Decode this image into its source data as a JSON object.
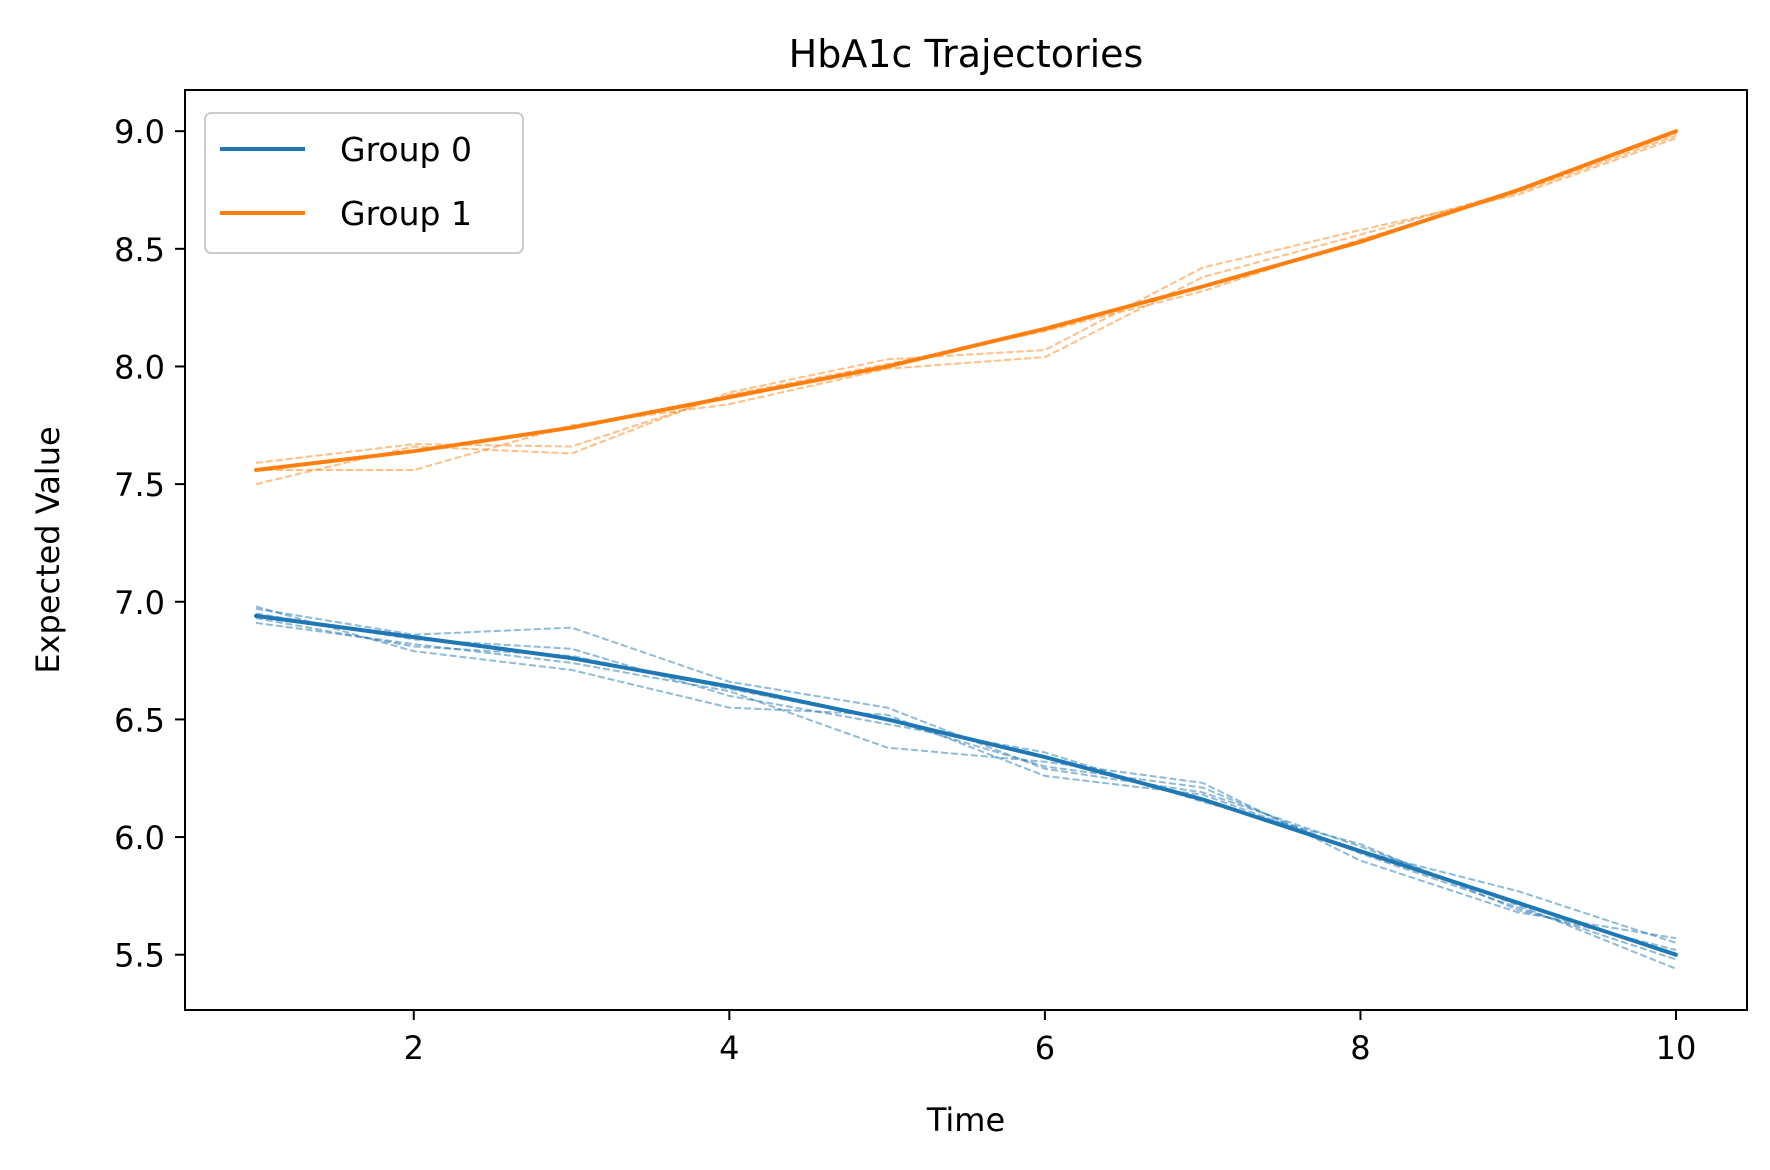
{
  "chart_data": {
    "type": "line",
    "title": "HbA1c Trajectories",
    "xlabel": "Time",
    "ylabel": "Expected Value",
    "xlim": [
      0.55,
      10.45
    ],
    "ylim": [
      5.265,
      9.175
    ],
    "xticks": [
      2,
      4,
      6,
      8,
      10
    ],
    "yticks": [
      5.5,
      6.0,
      6.5,
      7.0,
      7.5,
      8.0,
      8.5,
      9.0
    ],
    "grid": false,
    "legend_position": "upper left",
    "x": [
      1,
      2,
      3,
      4,
      5,
      6,
      7,
      8,
      9,
      10
    ],
    "series": [
      {
        "name": "Group 0",
        "color": "#1f77b4",
        "values": [
          6.94,
          6.85,
          6.76,
          6.64,
          6.5,
          6.34,
          6.16,
          5.94,
          5.72,
          5.5
        ]
      },
      {
        "name": "Group 1",
        "color": "#ff7f0e",
        "values": [
          7.56,
          7.64,
          7.74,
          7.87,
          8.0,
          8.16,
          8.34,
          8.53,
          8.75,
          9.0
        ]
      }
    ],
    "individual_trajectories": [
      {
        "group": "Group 0",
        "values": [
          6.97,
          6.86,
          6.89,
          6.66,
          6.55,
          6.29,
          6.19,
          5.96,
          5.71,
          5.44
        ]
      },
      {
        "group": "Group 0",
        "values": [
          6.91,
          6.82,
          6.74,
          6.62,
          6.38,
          6.32,
          6.23,
          5.9,
          5.68,
          5.57
        ]
      },
      {
        "group": "Group 0",
        "values": [
          6.98,
          6.79,
          6.71,
          6.55,
          6.52,
          6.26,
          6.18,
          5.94,
          5.77,
          5.55
        ]
      },
      {
        "group": "Group 0",
        "values": [
          6.95,
          6.84,
          6.8,
          6.6,
          6.48,
          6.36,
          6.15,
          5.97,
          5.69,
          5.52
        ]
      },
      {
        "group": "Group 0",
        "values": [
          6.93,
          6.81,
          6.77,
          6.63,
          6.5,
          6.3,
          6.21,
          5.93,
          5.7,
          5.48
        ]
      },
      {
        "group": "Group 1",
        "values": [
          7.5,
          7.66,
          7.63,
          7.89,
          8.03,
          8.07,
          8.42,
          8.58,
          8.73,
          8.97
        ]
      },
      {
        "group": "Group 1",
        "values": [
          7.56,
          7.56,
          7.75,
          7.84,
          7.99,
          8.04,
          8.38,
          8.56,
          8.75,
          8.99
        ]
      },
      {
        "group": "Group 1",
        "values": [
          7.59,
          7.67,
          7.66,
          7.88,
          8.01,
          8.15,
          8.32,
          8.54,
          8.74,
          8.98
        ]
      }
    ]
  }
}
